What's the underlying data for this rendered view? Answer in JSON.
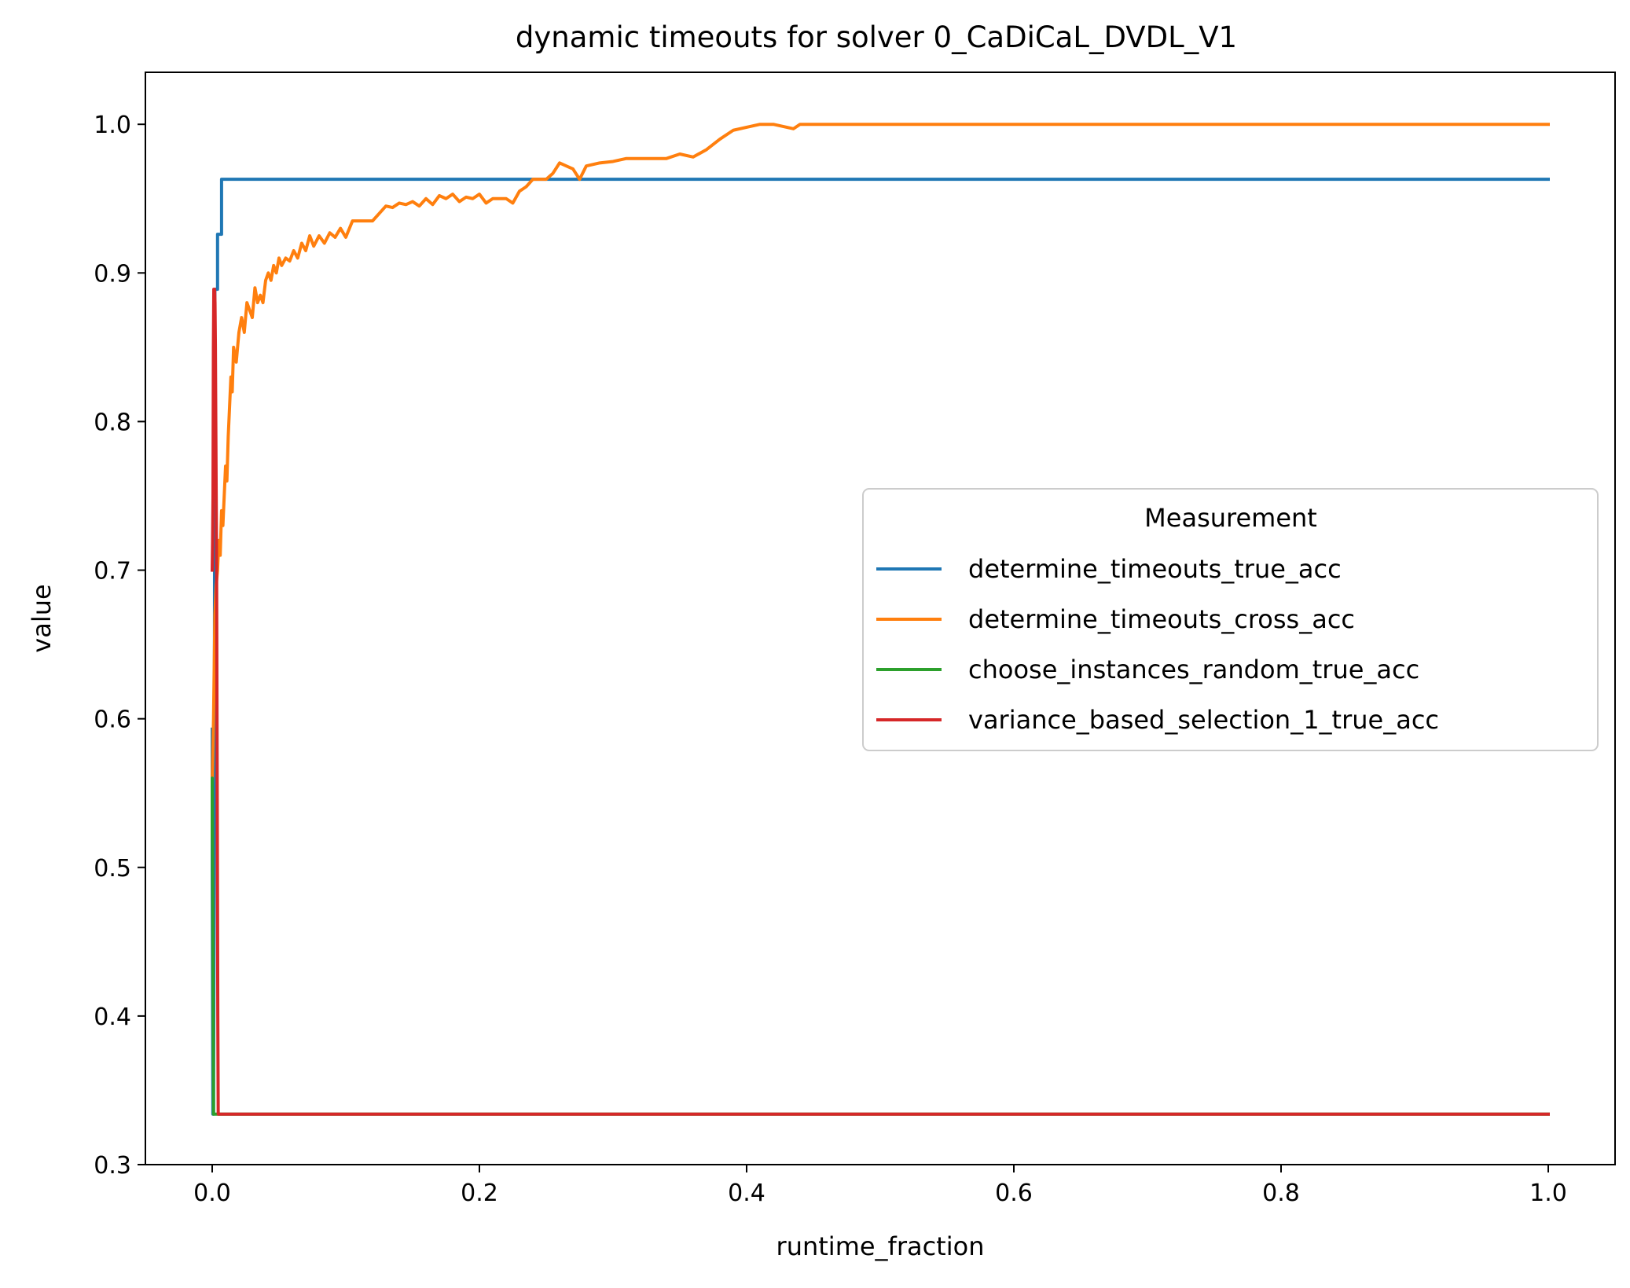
{
  "chart_data": {
    "type": "line",
    "title": "dynamic timeouts for solver 0_CaDiCaL_DVDL_V1",
    "xlabel": "runtime_fraction",
    "ylabel": "value",
    "xlim": [
      -0.05,
      1.05
    ],
    "ylim": [
      0.3,
      1.035
    ],
    "xticks": [
      0.0,
      0.2,
      0.4,
      0.6,
      0.8,
      1.0
    ],
    "xtick_labels": [
      "0.0",
      "0.2",
      "0.4",
      "0.6",
      "0.8",
      "1.0"
    ],
    "yticks": [
      0.3,
      0.4,
      0.5,
      0.6,
      0.7,
      0.8,
      0.9,
      1.0
    ],
    "ytick_labels": [
      "0.3",
      "0.4",
      "0.5",
      "0.6",
      "0.7",
      "0.8",
      "0.9",
      "1.0"
    ],
    "grid": false,
    "legend": {
      "title": "Measurement",
      "placement": "center-right"
    },
    "series": [
      {
        "name": "determine_timeouts_true_acc",
        "color": "#1f77b4",
        "x": [
          0.0,
          0.0,
          0.0005,
          0.001,
          0.0015,
          0.002,
          0.002,
          0.004,
          0.004,
          0.007,
          0.007,
          1.0
        ],
        "y": [
          0.593,
          0.5,
          0.334,
          0.334,
          0.5,
          0.889,
          0.889,
          0.889,
          0.926,
          0.926,
          0.963,
          0.963
        ]
      },
      {
        "name": "determine_timeouts_cross_acc",
        "color": "#ff7f0e",
        "x": [
          0.0,
          0.001,
          0.002,
          0.003,
          0.004,
          0.005,
          0.006,
          0.007,
          0.008,
          0.009,
          0.01,
          0.011,
          0.012,
          0.013,
          0.014,
          0.015,
          0.016,
          0.018,
          0.02,
          0.022,
          0.024,
          0.026,
          0.028,
          0.03,
          0.032,
          0.034,
          0.036,
          0.038,
          0.04,
          0.042,
          0.044,
          0.046,
          0.048,
          0.05,
          0.052,
          0.055,
          0.058,
          0.061,
          0.064,
          0.067,
          0.07,
          0.073,
          0.076,
          0.08,
          0.084,
          0.088,
          0.092,
          0.096,
          0.1,
          0.105,
          0.11,
          0.115,
          0.12,
          0.125,
          0.13,
          0.135,
          0.14,
          0.145,
          0.15,
          0.155,
          0.16,
          0.165,
          0.17,
          0.175,
          0.18,
          0.185,
          0.19,
          0.195,
          0.2,
          0.205,
          0.21,
          0.215,
          0.22,
          0.225,
          0.23,
          0.235,
          0.24,
          0.245,
          0.25,
          0.255,
          0.26,
          0.265,
          0.27,
          0.275,
          0.28,
          0.29,
          0.3,
          0.31,
          0.32,
          0.33,
          0.34,
          0.35,
          0.36,
          0.37,
          0.38,
          0.39,
          0.4,
          0.41,
          0.42,
          0.43,
          0.435,
          0.44,
          0.45,
          0.5,
          0.6,
          0.7,
          0.8,
          0.9,
          1.0
        ],
        "y": [
          0.555,
          0.6,
          0.67,
          0.69,
          0.7,
          0.72,
          0.71,
          0.74,
          0.73,
          0.75,
          0.77,
          0.76,
          0.79,
          0.81,
          0.83,
          0.82,
          0.85,
          0.84,
          0.86,
          0.87,
          0.86,
          0.88,
          0.875,
          0.87,
          0.89,
          0.88,
          0.885,
          0.88,
          0.895,
          0.9,
          0.895,
          0.905,
          0.9,
          0.91,
          0.905,
          0.91,
          0.908,
          0.915,
          0.91,
          0.92,
          0.915,
          0.925,
          0.918,
          0.925,
          0.92,
          0.927,
          0.924,
          0.93,
          0.924,
          0.935,
          0.935,
          0.935,
          0.935,
          0.94,
          0.945,
          0.944,
          0.947,
          0.946,
          0.948,
          0.945,
          0.95,
          0.946,
          0.952,
          0.95,
          0.953,
          0.948,
          0.951,
          0.95,
          0.953,
          0.947,
          0.95,
          0.95,
          0.95,
          0.947,
          0.955,
          0.958,
          0.963,
          0.963,
          0.963,
          0.967,
          0.974,
          0.972,
          0.97,
          0.963,
          0.972,
          0.974,
          0.975,
          0.977,
          0.977,
          0.977,
          0.977,
          0.98,
          0.978,
          0.983,
          0.99,
          0.996,
          0.998,
          1.0,
          1.0,
          0.998,
          0.997,
          1.0,
          1.0,
          1.0,
          1.0,
          1.0,
          1.0,
          1.0,
          1.0
        ]
      },
      {
        "name": "choose_instances_random_true_acc",
        "color": "#2ca02c",
        "x": [
          0.0,
          0.0,
          0.0005,
          0.001,
          1.0
        ],
        "y": [
          0.52,
          0.56,
          0.45,
          0.334,
          0.334
        ]
      },
      {
        "name": "variance_based_selection_1_true_acc",
        "color": "#d62728",
        "x": [
          0.0,
          0.0003,
          0.0006,
          0.0009,
          0.0012,
          0.0015,
          0.0018,
          0.0021,
          0.0024,
          0.0027,
          0.003,
          0.0033,
          0.0036,
          0.0039,
          0.0042,
          0.0045,
          1.0
        ],
        "y": [
          0.7,
          0.72,
          0.75,
          0.85,
          0.889,
          0.87,
          0.889,
          0.88,
          0.85,
          0.8,
          0.75,
          0.7,
          0.6,
          0.5,
          0.4,
          0.334,
          0.334
        ]
      }
    ]
  }
}
